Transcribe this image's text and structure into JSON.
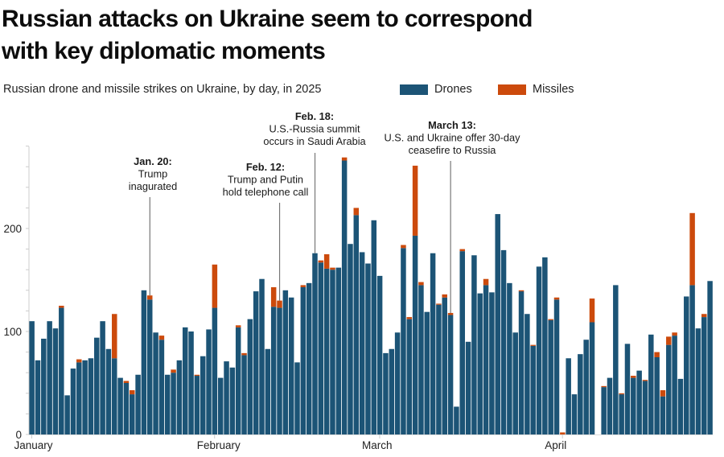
{
  "title": "Russian attacks on Ukraine seem to correspond with key diplomatic moments",
  "chart_data": {
    "type": "bar",
    "stacked": true,
    "title": "Russian attacks on Ukraine seem to correspond with key diplomatic moments",
    "subtitle": "Russian drone and missile strikes on Ukraine, by day, in 2025",
    "xlabel": "",
    "ylabel": "",
    "ylim": [
      0,
      280
    ],
    "yticks_major": [
      0,
      100,
      200
    ],
    "yticks_minor_step": 20,
    "grid": false,
    "legend": {
      "placement": "top-right",
      "entries": [
        "Drones",
        "Missiles"
      ]
    },
    "colors": {
      "Drones": "#1c5476",
      "Missiles": "#cc4a0c",
      "annotation_line": "#777777",
      "axis": "#cccccc"
    },
    "x_month_labels": [
      {
        "label": "January",
        "day_index": 0
      },
      {
        "label": "February",
        "day_index": 31
      },
      {
        "label": "March",
        "day_index": 59
      },
      {
        "label": "April",
        "day_index": 90
      }
    ],
    "start_date": "2025-01-01",
    "series": [
      {
        "name": "Drones",
        "values": [
          110,
          72,
          93,
          110,
          103,
          123,
          38,
          64,
          70,
          72,
          74,
          94,
          110,
          83,
          74,
          55,
          50,
          39,
          58,
          140,
          131,
          99,
          92,
          58,
          60,
          72,
          104,
          100,
          57,
          76,
          102,
          123,
          55,
          71,
          65,
          104,
          77,
          112,
          139,
          151,
          83,
          124,
          123,
          140,
          133,
          70,
          143,
          147,
          176,
          167,
          161,
          160,
          162,
          266,
          185,
          213,
          177,
          166,
          208,
          154,
          79,
          83,
          99,
          181,
          112,
          193,
          145,
          119,
          176,
          126,
          133,
          116,
          27,
          178,
          90,
          174,
          137,
          145,
          138,
          214,
          179,
          147,
          99,
          139,
          117,
          86,
          163,
          172,
          111,
          131,
          0,
          74,
          39,
          78,
          92,
          109,
          0,
          46,
          55,
          145,
          39,
          88,
          55,
          62,
          52,
          97,
          75,
          37,
          87,
          96,
          54,
          134,
          145,
          103,
          114,
          149
        ]
      },
      {
        "name": "Missiles",
        "values": [
          0,
          0,
          0,
          0,
          0,
          2,
          0,
          0,
          3,
          0,
          0,
          0,
          0,
          0,
          43,
          0,
          2,
          4,
          0,
          0,
          4,
          0,
          4,
          0,
          3,
          0,
          0,
          0,
          1,
          0,
          0,
          42,
          0,
          0,
          0,
          2,
          2,
          0,
          0,
          0,
          0,
          19,
          7,
          0,
          0,
          0,
          2,
          0,
          0,
          2,
          14,
          2,
          0,
          3,
          0,
          7,
          0,
          0,
          0,
          0,
          0,
          0,
          0,
          3,
          2,
          68,
          3,
          0,
          0,
          1,
          3,
          2,
          0,
          2,
          0,
          0,
          0,
          6,
          0,
          0,
          0,
          0,
          0,
          1,
          0,
          1,
          0,
          0,
          1,
          2,
          2,
          0,
          0,
          0,
          0,
          23,
          0,
          1,
          0,
          0,
          1,
          0,
          2,
          0,
          1,
          0,
          5,
          6,
          8,
          3,
          0,
          0,
          70,
          0,
          3,
          0
        ]
      }
    ],
    "annotations": [
      {
        "date_label": "Jan. 20:",
        "lines": [
          "Trump",
          "inagurated"
        ],
        "day_index": 20
      },
      {
        "date_label": "Feb. 12:",
        "lines": [
          "Trump and Putin",
          "hold telephone call"
        ],
        "day_index": 42
      },
      {
        "date_label": "Feb. 18:",
        "lines": [
          "U.S.-Russia summit",
          "occurs in Saudi Arabia"
        ],
        "day_index": 48
      },
      {
        "date_label": "March 13:",
        "lines": [
          "U.S. and Ukraine offer 30-day",
          "ceasefire to Russia"
        ],
        "day_index": 71
      }
    ]
  }
}
